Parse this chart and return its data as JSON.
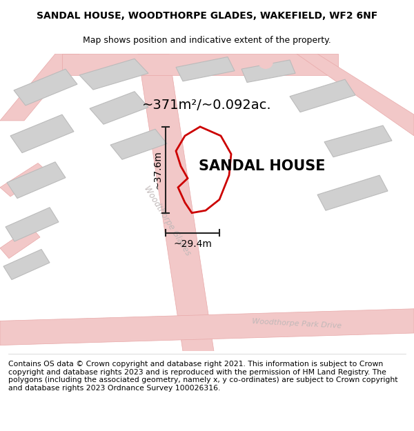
{
  "title_line1": "SANDAL HOUSE, WOODTHORPE GLADES, WAKEFIELD, WF2 6NF",
  "title_line2": "Map shows position and indicative extent of the property.",
  "footer_text": "Contains OS data © Crown copyright and database right 2021. This information is subject to Crown copyright and database rights 2023 and is reproduced with the permission of HM Land Registry. The polygons (including the associated geometry, namely x, y co-ordinates) are subject to Crown copyright and database rights 2023 Ordnance Survey 100026316.",
  "area_label": "~371m²/~0.092ac.",
  "property_label": "SANDAL HOUSE",
  "dim_width": "~29.4m",
  "dim_height": "~37.6m",
  "road_label1": "Woodthorpe Glades",
  "road_label2": "Woodthorpe Park Drive",
  "map_bg": "#eeeeee",
  "road_fill": "#f2c8c8",
  "road_edge": "#e8a8a8",
  "building_fill": "#d0d0d0",
  "building_edge": "#bbbbbb",
  "property_outline_color": "#cc0000",
  "dim_line_color": "#222222",
  "road_text_color": "#c0b8b8",
  "title_fontsize": 10,
  "subtitle_fontsize": 9,
  "footer_fontsize": 7.8,
  "area_fontsize": 14,
  "property_label_fontsize": 15,
  "dim_fontsize": 10
}
